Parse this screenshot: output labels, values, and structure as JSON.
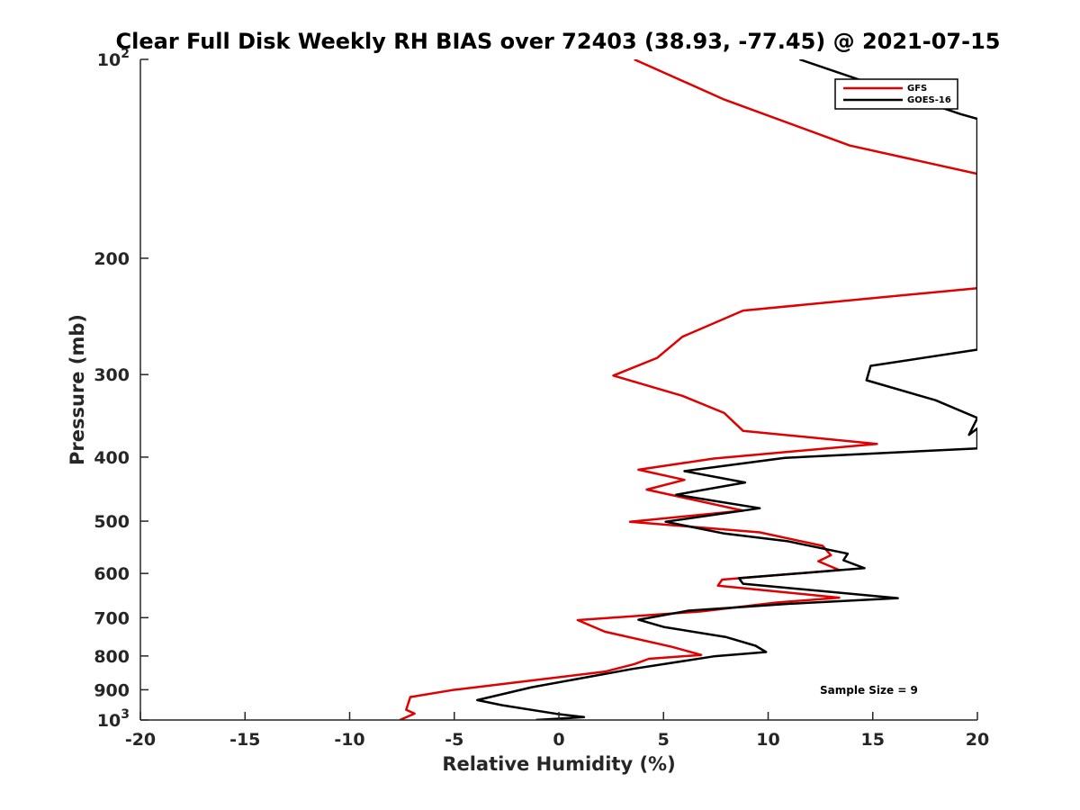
{
  "chart_data": {
    "type": "line",
    "title": "Clear Full Disk Weekly RH BIAS over 72403 (38.93, -77.45) @ 2021-07-15",
    "xlabel": "Relative Humidity (%)",
    "ylabel": "Pressure (mb)",
    "xlim": [
      -20,
      20
    ],
    "ylim": [
      100,
      1000
    ],
    "y_scale": "log",
    "y_reversed": true,
    "x_ticks": [
      "-20",
      "-15",
      "-10",
      "-5",
      "0",
      "5",
      "10",
      "15",
      "20"
    ],
    "y_ticks": [
      {
        "value": 100,
        "base": "10",
        "exp": "2"
      },
      {
        "value": 200,
        "label": "200"
      },
      {
        "value": 300,
        "label": "300"
      },
      {
        "value": 400,
        "label": "400"
      },
      {
        "value": 500,
        "label": "500"
      },
      {
        "value": 600,
        "label": "600"
      },
      {
        "value": 700,
        "label": "700"
      },
      {
        "value": 800,
        "label": "800"
      },
      {
        "value": 900,
        "label": "900"
      },
      {
        "value": 1000,
        "base": "10",
        "exp": "3"
      }
    ],
    "grid": false,
    "legend_position": "top-right",
    "annotation": "Sample Size = 9",
    "series": [
      {
        "name": "GFS",
        "color": "#e00000",
        "points": [
          [
            3.6,
            100
          ],
          [
            7.9,
            115
          ],
          [
            13.9,
            135
          ],
          [
            20.0,
            149
          ],
          [
            20.0,
            222
          ],
          [
            8.8,
            240
          ],
          [
            5.9,
            263
          ],
          [
            4.7,
            283
          ],
          [
            2.6,
            301
          ],
          [
            5.9,
            323
          ],
          [
            7.9,
            343
          ],
          [
            8.8,
            365
          ],
          [
            15.2,
            382
          ],
          [
            7.4,
            402
          ],
          [
            3.8,
            418
          ],
          [
            6.0,
            433
          ],
          [
            4.2,
            448
          ],
          [
            8.8,
            482
          ],
          [
            3.4,
            501
          ],
          [
            9.6,
            520
          ],
          [
            12.6,
            545
          ],
          [
            13.0,
            563
          ],
          [
            12.4,
            575
          ],
          [
            13.4,
            593
          ],
          [
            7.8,
            613
          ],
          [
            7.6,
            626
          ],
          [
            13.4,
            653
          ],
          [
            10.4,
            664
          ],
          [
            6.8,
            685
          ],
          [
            0.9,
            706
          ],
          [
            2.2,
            735
          ],
          [
            5.4,
            775
          ],
          [
            6.8,
            797
          ],
          [
            4.3,
            808
          ],
          [
            3.6,
            823
          ],
          [
            2.2,
            845
          ],
          [
            -5.1,
            901
          ],
          [
            -7.1,
            923
          ],
          [
            -7.3,
            965
          ],
          [
            -6.9,
            978
          ],
          [
            -7.6,
            1000
          ]
        ]
      },
      {
        "name": "GOES-16",
        "color": "#000000",
        "points": [
          [
            11.5,
            100
          ],
          [
            19.2,
            121
          ],
          [
            20.0,
            123
          ],
          [
            20.0,
            275
          ],
          [
            14.9,
            291
          ],
          [
            14.7,
            306
          ],
          [
            18.0,
            328
          ],
          [
            20.0,
            349
          ],
          [
            19.6,
            370
          ],
          [
            20.0,
            362
          ],
          [
            20.0,
            388
          ],
          [
            10.8,
            401
          ],
          [
            6.0,
            420
          ],
          [
            8.9,
            437
          ],
          [
            5.6,
            456
          ],
          [
            9.6,
            478
          ],
          [
            5.1,
            501
          ],
          [
            7.9,
            522
          ],
          [
            10.9,
            536
          ],
          [
            13.8,
            560
          ],
          [
            13.6,
            573
          ],
          [
            14.6,
            589
          ],
          [
            8.6,
            610
          ],
          [
            8.8,
            622
          ],
          [
            16.2,
            654
          ],
          [
            11.0,
            667
          ],
          [
            6.2,
            683
          ],
          [
            3.8,
            705
          ],
          [
            5.0,
            723
          ],
          [
            8.0,
            749
          ],
          [
            9.4,
            772
          ],
          [
            9.9,
            789
          ],
          [
            7.4,
            801
          ],
          [
            3.5,
            837
          ],
          [
            -1.3,
            892
          ],
          [
            -3.9,
            933
          ],
          [
            -2.7,
            950
          ],
          [
            -0.1,
            979
          ],
          [
            1.2,
            990
          ],
          [
            -1.1,
            1000
          ]
        ]
      }
    ]
  }
}
